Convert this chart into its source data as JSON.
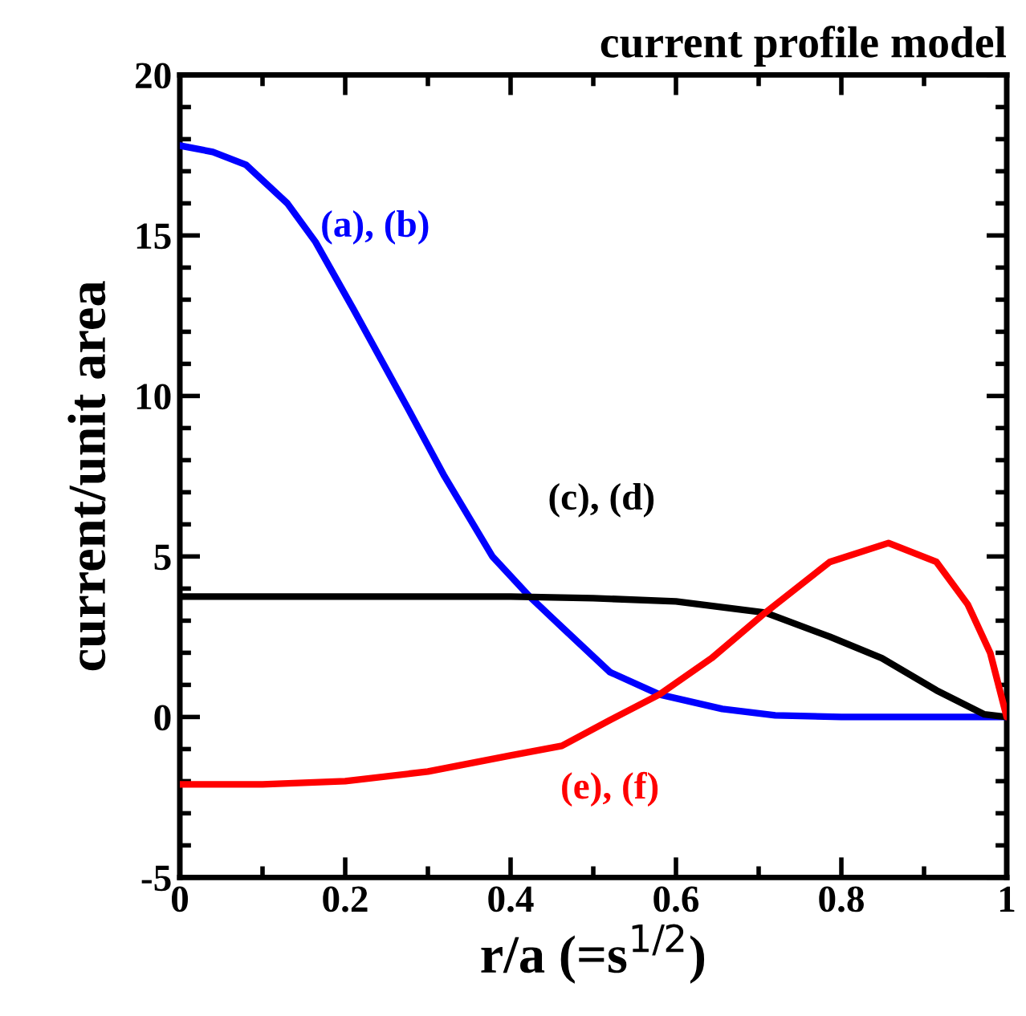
{
  "chart_data": {
    "type": "line",
    "title": "current profile model",
    "xlabel": "r/a (=s$^{1/2}$)",
    "ylabel": "current/unit area",
    "xlim": [
      0,
      1
    ],
    "xticks": [
      0,
      0.2,
      0.4,
      0.6,
      0.8,
      1
    ],
    "ylim": [
      -5,
      20
    ],
    "yticks": [
      -5,
      0,
      5,
      10,
      15,
      20
    ],
    "grid": false,
    "legend": false,
    "series": [
      {
        "name": "(a), (b)",
        "color": "#0000ff",
        "x": [
          0,
          0.04,
          0.08,
          0.13,
          0.164,
          0.21,
          0.274,
          0.32,
          0.378,
          0.423,
          0.462,
          0.52,
          0.58,
          0.656,
          0.72,
          0.8,
          0.9,
          1
        ],
        "values": [
          17.8,
          17.6,
          17.2,
          16.0,
          14.8,
          12.7,
          9.7,
          7.5,
          5.0,
          3.75,
          2.8,
          1.4,
          0.7,
          0.25,
          0.05,
          0,
          0,
          0
        ]
      },
      {
        "name": "(c), (d)",
        "color": "#000000",
        "x": [
          0,
          0.2,
          0.4,
          0.5,
          0.6,
          0.708,
          0.786,
          0.849,
          0.915,
          0.973,
          1
        ],
        "values": [
          3.75,
          3.75,
          3.75,
          3.7,
          3.6,
          3.25,
          2.5,
          1.83,
          0.83,
          0.08,
          0
        ]
      },
      {
        "name": "(e), (f)",
        "color": "#ff0000",
        "x": [
          0,
          0.1,
          0.2,
          0.3,
          0.35,
          0.4,
          0.462,
          0.52,
          0.58,
          0.643,
          0.708,
          0.786,
          0.857,
          0.915,
          0.953,
          0.98,
          1
        ],
        "values": [
          -2.1,
          -2.1,
          -2.0,
          -1.7,
          -1.45,
          -1.2,
          -0.9,
          -0.1,
          0.7,
          1.83,
          3.25,
          4.83,
          5.42,
          4.83,
          3.5,
          2.0,
          0
        ]
      }
    ]
  }
}
